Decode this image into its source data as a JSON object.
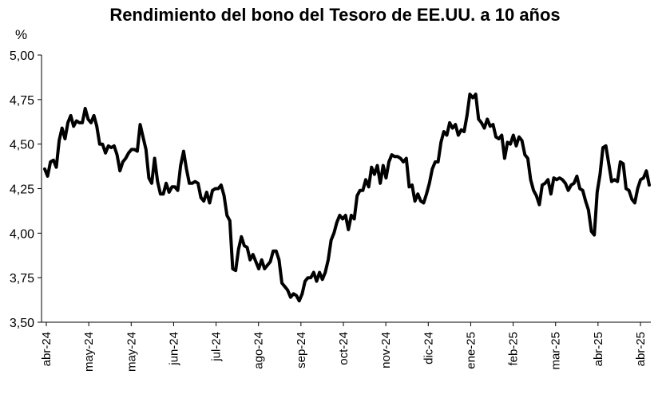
{
  "chart_data": {
    "type": "line",
    "title": "Rendimiento del bono del Tesoro de EE.UU. a 10 años",
    "ylabel": "%",
    "xlabel": "",
    "ylim": [
      3.5,
      5.0
    ],
    "yticks": [
      "3,50",
      "3,75",
      "4,00",
      "4,25",
      "4,50",
      "4,75",
      "5,00"
    ],
    "ytick_values": [
      3.5,
      3.75,
      4.0,
      4.25,
      4.5,
      4.75,
      5.0
    ],
    "xticks": [
      "abr-24",
      "may-24",
      "may-24",
      "jun-24",
      "jul-24",
      "ago-24",
      "sep-24",
      "oct-24",
      "nov-24",
      "dic-24",
      "ene-25",
      "feb-25",
      "mar-25",
      "abr-25",
      "abr-25"
    ],
    "grid": false,
    "legend": "none",
    "line_color": "#000000",
    "series": [
      {
        "values": [
          4.36,
          4.32,
          4.4,
          4.41,
          4.37,
          4.52,
          4.59,
          4.53,
          4.62,
          4.66,
          4.6,
          4.63,
          4.62,
          4.62,
          4.7,
          4.64,
          4.62,
          4.66,
          4.6,
          4.5,
          4.5,
          4.45,
          4.49,
          4.48,
          4.49,
          4.44,
          4.35,
          4.4,
          4.42,
          4.45,
          4.47,
          4.47,
          4.46,
          4.61,
          4.54,
          4.47,
          4.31,
          4.28,
          4.42,
          4.29,
          4.22,
          4.22,
          4.28,
          4.23,
          4.26,
          4.26,
          4.24,
          4.38,
          4.46,
          4.36,
          4.28,
          4.28,
          4.29,
          4.28,
          4.2,
          4.18,
          4.23,
          4.17,
          4.24,
          4.25,
          4.25,
          4.27,
          4.21,
          4.1,
          4.07,
          3.8,
          3.79,
          3.91,
          3.98,
          3.93,
          3.92,
          3.85,
          3.88,
          3.84,
          3.8,
          3.85,
          3.8,
          3.82,
          3.84,
          3.9,
          3.9,
          3.85,
          3.72,
          3.7,
          3.68,
          3.64,
          3.66,
          3.65,
          3.62,
          3.66,
          3.73,
          3.75,
          3.75,
          3.78,
          3.73,
          3.78,
          3.74,
          3.78,
          3.85,
          3.96,
          4.0,
          4.06,
          4.1,
          4.08,
          4.1,
          4.02,
          4.1,
          4.08,
          4.21,
          4.24,
          4.24,
          4.3,
          4.26,
          4.37,
          4.33,
          4.38,
          4.28,
          4.38,
          4.31,
          4.4,
          4.44,
          4.43,
          4.43,
          4.42,
          4.4,
          4.42,
          4.26,
          4.27,
          4.18,
          4.22,
          4.18,
          4.17,
          4.22,
          4.28,
          4.36,
          4.4,
          4.4,
          4.51,
          4.57,
          4.55,
          4.62,
          4.59,
          4.61,
          4.55,
          4.58,
          4.57,
          4.66,
          4.78,
          4.76,
          4.78,
          4.64,
          4.62,
          4.59,
          4.64,
          4.6,
          4.61,
          4.54,
          4.53,
          4.55,
          4.42,
          4.51,
          4.5,
          4.55,
          4.49,
          4.54,
          4.52,
          4.44,
          4.42,
          4.3,
          4.24,
          4.21,
          4.16,
          4.27,
          4.28,
          4.3,
          4.22,
          4.31,
          4.3,
          4.31,
          4.3,
          4.28,
          4.24,
          4.27,
          4.28,
          4.32,
          4.25,
          4.24,
          4.18,
          4.13,
          4.01,
          3.99,
          4.23,
          4.33,
          4.48,
          4.49,
          4.39,
          4.29,
          4.3,
          4.29,
          4.4,
          4.39,
          4.25,
          4.24,
          4.19,
          4.17,
          4.25,
          4.3,
          4.31,
          4.35,
          4.27
        ]
      }
    ]
  }
}
